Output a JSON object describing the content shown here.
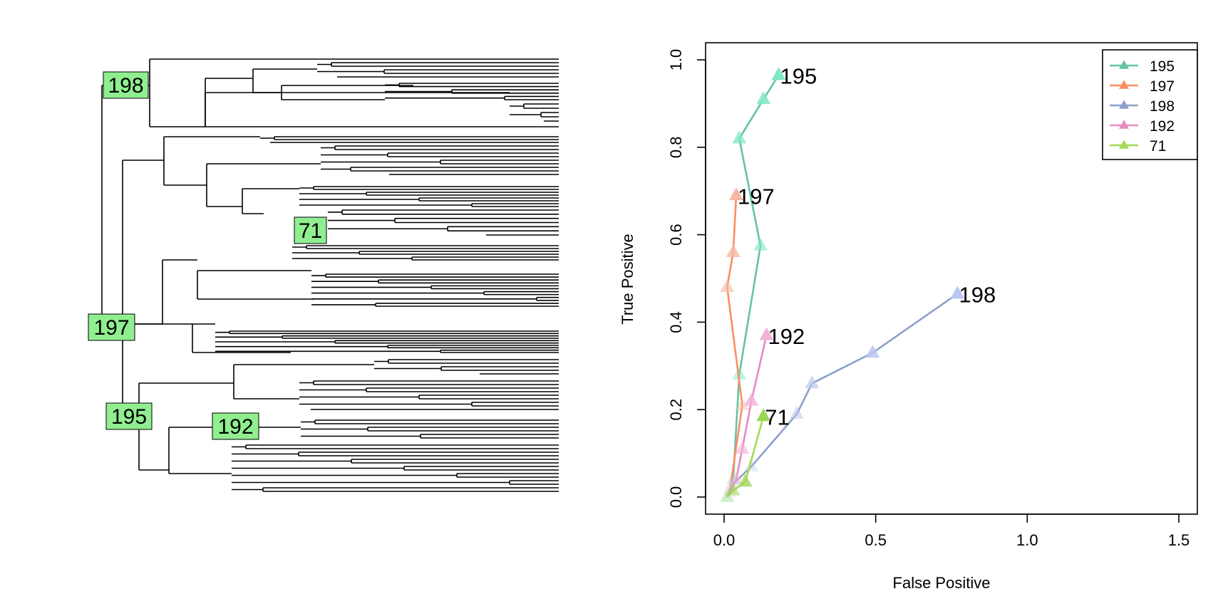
{
  "chart_data": [
    {
      "type": "dendrogram",
      "title": "",
      "node_labels": [
        "198",
        "71",
        "197",
        "195",
        "192"
      ]
    },
    {
      "type": "line",
      "title": "",
      "xlabel": "False Positive",
      "ylabel": "True Positive",
      "xlim": [
        0.0,
        1.5
      ],
      "ylim": [
        0.0,
        1.0
      ],
      "xticks": [
        "0.0",
        "0.5",
        "1.0",
        "1.5"
      ],
      "yticks": [
        "0.0",
        "0.2",
        "0.4",
        "0.6",
        "0.8",
        "1.0"
      ],
      "legend_position": "top-right",
      "series": [
        {
          "name": "195",
          "color": "#66c2a5",
          "marker_color": "#7fe8c4",
          "end_label": "195",
          "x": [
            0.01,
            0.03,
            0.05,
            0.12,
            0.05,
            0.13,
            0.18
          ],
          "y": [
            0.0,
            0.04,
            0.28,
            0.575,
            0.82,
            0.91,
            0.965
          ]
        },
        {
          "name": "197",
          "color": "#fc8d62",
          "marker_color": "#f4b8a4",
          "end_label": "197",
          "x": [
            0.02,
            0.06,
            0.01,
            0.03,
            0.04
          ],
          "y": [
            0.02,
            0.21,
            0.48,
            0.56,
            0.69
          ]
        },
        {
          "name": "198",
          "color": "#8da0cb",
          "marker_color": "#bac7ee",
          "end_label": "198",
          "x": [
            0.03,
            0.09,
            0.24,
            0.29,
            0.49,
            0.77
          ],
          "y": [
            0.03,
            0.07,
            0.19,
            0.26,
            0.33,
            0.465
          ]
        },
        {
          "name": "192",
          "color": "#e78ac3",
          "marker_color": "#f2b2da",
          "end_label": "192",
          "x": [
            0.02,
            0.04,
            0.06,
            0.09,
            0.14
          ],
          "y": [
            0.01,
            0.04,
            0.11,
            0.22,
            0.37
          ]
        },
        {
          "name": "71",
          "color": "#a6d854",
          "marker_color": "#9dd657",
          "end_label": "71",
          "x": [
            0.01,
            0.03,
            0.07,
            0.13
          ],
          "y": [
            0.0,
            0.015,
            0.035,
            0.185
          ]
        }
      ]
    }
  ]
}
